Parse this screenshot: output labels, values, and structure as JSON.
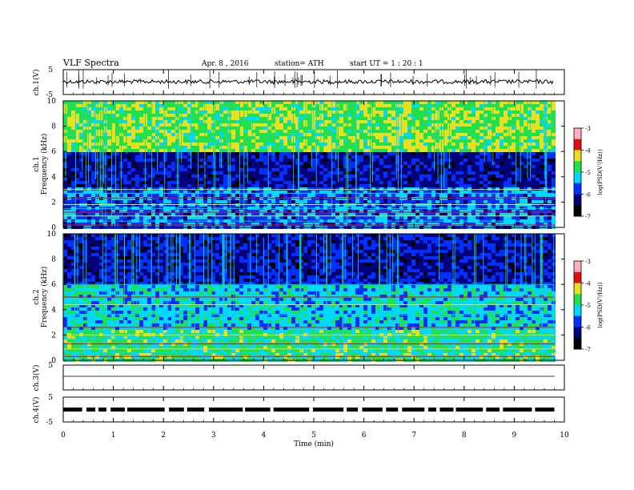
{
  "header": {
    "title": "VLF  Spectra",
    "date": "Apr. 8  , 2016",
    "station": "station= ATH",
    "start": "start  UT  =   1  : 20 : 1"
  },
  "panels": {
    "ch1_wave_label": "ch.1(V)",
    "ch1_spec_label": "ch.1",
    "ch2_spec_label": "ch.2",
    "freq_label": "Frequency  (kHz)",
    "ch3_label": "ch.3(V)",
    "ch4_label": "ch.4(V)",
    "colorbar_label": "log(PSD(V²/Hz))"
  },
  "colors": {
    "black": "#000000",
    "navy": "#00007a",
    "blue": "#0030ff",
    "cyan": "#00d8ff",
    "green": "#20e050",
    "yellow": "#e8e020",
    "red": "#e01010",
    "pink": "#ffb0c0"
  },
  "chart_data": [
    {
      "type": "line",
      "name": "ch1-waveform",
      "ylabel": "ch.1(V)",
      "ylim": [
        -5,
        5
      ],
      "yticks": [
        "5",
        "-5"
      ],
      "xlim": [
        0,
        10
      ],
      "description_level": "noisy trace near 0 V with spikes"
    },
    {
      "type": "heatmap",
      "name": "ch1-spectrogram",
      "ylabel": "Frequency  (kHz)",
      "ylim": [
        0,
        10
      ],
      "yticks": [
        "0",
        "2",
        "4",
        "6",
        "8",
        "10"
      ],
      "xlim": [
        0,
        10
      ],
      "colorbar": {
        "ticks": [
          "-3",
          "-4",
          "-5",
          "-6",
          "-7"
        ],
        "range": [
          -7,
          -3
        ]
      },
      "bands_khz": {
        "high_noise": [
          6,
          10
        ],
        "dark": [
          3,
          6
        ],
        "tones_below": 3
      }
    },
    {
      "type": "heatmap",
      "name": "ch2-spectrogram",
      "ylabel": "Frequency  (kHz)",
      "ylim": [
        0,
        10
      ],
      "yticks": [
        "0",
        "2",
        "4",
        "6",
        "8",
        "10"
      ],
      "xlim": [
        0,
        10
      ],
      "colorbar": {
        "ticks": [
          "-3",
          "-4",
          "-5",
          "-6",
          "-7"
        ],
        "range": [
          -7,
          -3
        ]
      }
    },
    {
      "type": "line",
      "name": "ch3-waveform",
      "ylabel": "ch.3(V)",
      "ylim": [
        -5,
        5
      ],
      "yticks": [
        "5"
      ]
    },
    {
      "type": "line",
      "name": "ch4-waveform",
      "ylabel": "ch.4(V)",
      "ylim": [
        -5,
        5
      ],
      "yticks": [
        "5",
        "-5"
      ]
    }
  ],
  "xaxis": {
    "label": "Time  (min)",
    "ticks": [
      "0",
      "1",
      "2",
      "3",
      "4",
      "5",
      "6",
      "7",
      "8",
      "9",
      "10"
    ],
    "data_end_min": 9.8
  }
}
